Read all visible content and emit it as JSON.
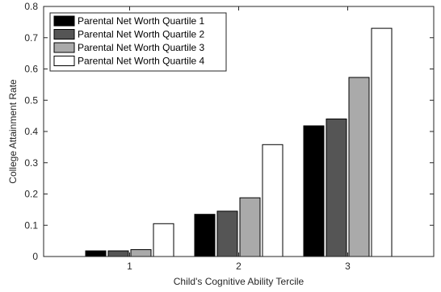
{
  "chart_data": {
    "type": "bar",
    "title": "",
    "xlabel": "Child's Cognitive Ability Tercile",
    "ylabel": "College Attainment Rate",
    "categories": [
      "1",
      "2",
      "3"
    ],
    "ylim": [
      0,
      0.8
    ],
    "yticks": [
      "0",
      "0.1",
      "0.2",
      "0.3",
      "0.4",
      "0.5",
      "0.6",
      "0.7",
      "0.8"
    ],
    "grid": false,
    "legend_position": "top-left",
    "series": [
      {
        "name": "Parental Net Worth Quartile 1",
        "color": "#000000",
        "values": [
          0.018,
          0.135,
          0.418
        ]
      },
      {
        "name": "Parental Net Worth Quartile 2",
        "color": "#555555",
        "values": [
          0.018,
          0.145,
          0.44
        ]
      },
      {
        "name": "Parental Net Worth Quartile 3",
        "color": "#aaaaaa",
        "values": [
          0.022,
          0.188,
          0.573
        ]
      },
      {
        "name": "Parental Net Worth Quartile 4",
        "color": "#ffffff",
        "values": [
          0.105,
          0.358,
          0.73
        ]
      }
    ]
  }
}
